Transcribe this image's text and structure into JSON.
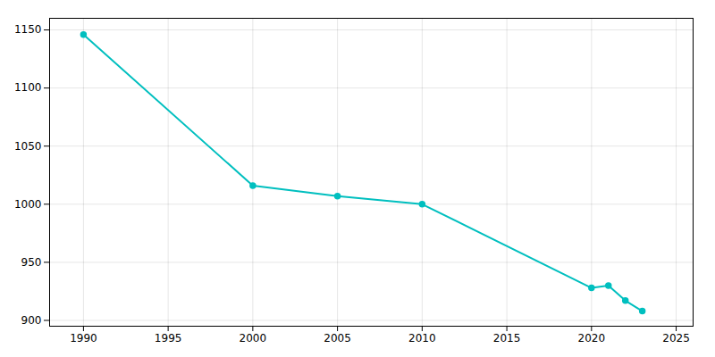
{
  "chart_data": {
    "type": "line",
    "x": [
      1990,
      2000,
      2005,
      2010,
      2020,
      2021,
      2022,
      2023
    ],
    "values": [
      1146,
      1016,
      1007,
      1000,
      928,
      930,
      917,
      908
    ],
    "color": "#00BFBF",
    "marker": "circle",
    "xlim": [
      1988,
      2026
    ],
    "xticks": [
      1990,
      1995,
      2000,
      2005,
      2010,
      2015,
      2020,
      2025
    ],
    "ylim": [
      895,
      1160
    ],
    "yticks": [
      900,
      950,
      1000,
      1050,
      1100,
      1150
    ],
    "grid": true
  }
}
